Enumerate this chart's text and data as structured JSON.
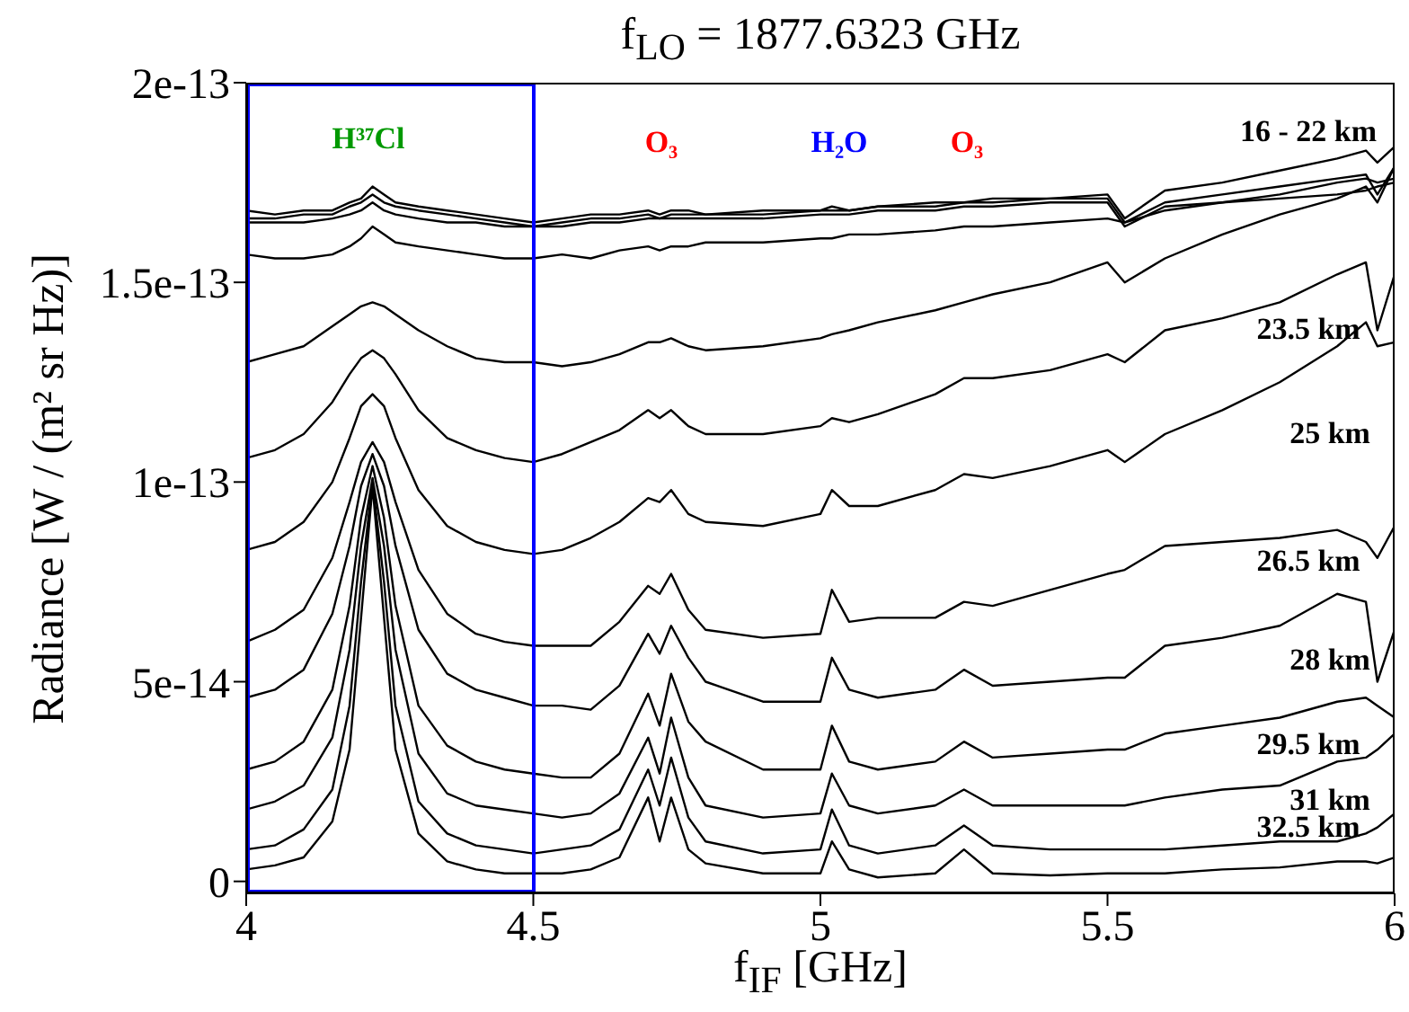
{
  "chart_data": {
    "type": "line",
    "title": "f$_{LO}$ = 1877.6323 GHz",
    "xlabel": "f$_{IF}$ [GHz]",
    "ylabel": "Radiance [W / (m² sr Hz)]",
    "xlim": [
      4,
      6
    ],
    "xticks": [
      4,
      4.5,
      5,
      5.5,
      6
    ],
    "ylim": [
      -3e-15,
      2e-13
    ],
    "yticks": [
      0,
      {
        "value": 5e-14,
        "label": "5e-14"
      },
      {
        "value": 1e-13,
        "label": "1e-13"
      },
      {
        "value": 1.5e-13,
        "label": "1.5e-13"
      },
      {
        "value": 2e-13,
        "label": "2e-13"
      }
    ],
    "annotations": [
      "H³⁷Cl",
      "O₃",
      "H₂O",
      "O₃",
      "16 - 22 km",
      "23.5 km",
      "25 km",
      "26.5 km",
      "28 km",
      "29.5 km",
      "31 km",
      "32.5 km"
    ],
    "x": [
      4.0,
      4.05,
      4.1,
      4.15,
      4.18,
      4.2,
      4.22,
      4.24,
      4.26,
      4.3,
      4.35,
      4.4,
      4.45,
      4.5,
      4.55,
      4.6,
      4.65,
      4.7,
      4.72,
      4.74,
      4.77,
      4.8,
      4.9,
      5.0,
      5.02,
      5.05,
      5.1,
      5.2,
      5.25,
      5.3,
      5.4,
      5.5,
      5.53,
      5.6,
      5.7,
      5.8,
      5.9,
      5.95,
      5.97,
      6.0
    ],
    "series": [
      {
        "color": "#000000",
        "values": [
          1.68e-13,
          1.67e-13,
          1.68e-13,
          1.68e-13,
          1.7e-13,
          1.71e-13,
          1.74e-13,
          1.72e-13,
          1.7e-13,
          1.69e-13,
          1.68e-13,
          1.67e-13,
          1.66e-13,
          1.65e-13,
          1.66e-13,
          1.67e-13,
          1.67e-13,
          1.68e-13,
          1.67e-13,
          1.68e-13,
          1.68e-13,
          1.67e-13,
          1.68e-13,
          1.68e-13,
          1.69e-13,
          1.68e-13,
          1.69e-13,
          1.7e-13,
          1.7e-13,
          1.71e-13,
          1.71e-13,
          1.72e-13,
          1.66e-13,
          1.73e-13,
          1.75e-13,
          1.78e-13,
          1.81e-13,
          1.83e-13,
          1.8e-13,
          1.84e-13
        ]
      },
      {
        "color": "#000000",
        "values": [
          1.66e-13,
          1.66e-13,
          1.67e-13,
          1.67e-13,
          1.69e-13,
          1.7e-13,
          1.72e-13,
          1.7e-13,
          1.69e-13,
          1.68e-13,
          1.67e-13,
          1.66e-13,
          1.65e-13,
          1.64e-13,
          1.65e-13,
          1.66e-13,
          1.66e-13,
          1.67e-13,
          1.66e-13,
          1.67e-13,
          1.67e-13,
          1.67e-13,
          1.67e-13,
          1.68e-13,
          1.68e-13,
          1.68e-13,
          1.69e-13,
          1.69e-13,
          1.7e-13,
          1.7e-13,
          1.71e-13,
          1.71e-13,
          1.65e-13,
          1.7e-13,
          1.72e-13,
          1.74e-13,
          1.76e-13,
          1.77e-13,
          1.72e-13,
          1.79e-13
        ]
      },
      {
        "color": "#000000",
        "values": [
          1.65e-13,
          1.65e-13,
          1.65e-13,
          1.66e-13,
          1.67e-13,
          1.68e-13,
          1.7e-13,
          1.68e-13,
          1.67e-13,
          1.66e-13,
          1.65e-13,
          1.65e-13,
          1.64e-13,
          1.64e-13,
          1.64e-13,
          1.65e-13,
          1.65e-13,
          1.66e-13,
          1.66e-13,
          1.66e-13,
          1.66e-13,
          1.66e-13,
          1.66e-13,
          1.67e-13,
          1.67e-13,
          1.67e-13,
          1.68e-13,
          1.68e-13,
          1.69e-13,
          1.69e-13,
          1.7e-13,
          1.7e-13,
          1.64e-13,
          1.69e-13,
          1.7e-13,
          1.71e-13,
          1.72e-13,
          1.73e-13,
          1.74e-13,
          1.75e-13
        ]
      },
      {
        "color": "#000000",
        "values": [
          1.57e-13,
          1.56e-13,
          1.56e-13,
          1.57e-13,
          1.59e-13,
          1.61e-13,
          1.64e-13,
          1.62e-13,
          1.6e-13,
          1.59e-13,
          1.58e-13,
          1.57e-13,
          1.56e-13,
          1.56e-13,
          1.57e-13,
          1.56e-13,
          1.58e-13,
          1.59e-13,
          1.58e-13,
          1.59e-13,
          1.59e-13,
          1.6e-13,
          1.6e-13,
          1.61e-13,
          1.61e-13,
          1.62e-13,
          1.62e-13,
          1.63e-13,
          1.64e-13,
          1.64e-13,
          1.65e-13,
          1.66e-13,
          1.65e-13,
          1.68e-13,
          1.7e-13,
          1.72e-13,
          1.75e-13,
          1.76e-13,
          1.75e-13,
          1.76e-13
        ]
      },
      {
        "color": "#000000",
        "values": [
          1.3e-13,
          1.32e-13,
          1.34e-13,
          1.39e-13,
          1.42e-13,
          1.44e-13,
          1.45e-13,
          1.44e-13,
          1.42e-13,
          1.38e-13,
          1.34e-13,
          1.31e-13,
          1.3e-13,
          1.3e-13,
          1.29e-13,
          1.3e-13,
          1.32e-13,
          1.35e-13,
          1.35e-13,
          1.36e-13,
          1.34e-13,
          1.33e-13,
          1.34e-13,
          1.36e-13,
          1.37e-13,
          1.38e-13,
          1.4e-13,
          1.43e-13,
          1.45e-13,
          1.47e-13,
          1.5e-13,
          1.55e-13,
          1.5e-13,
          1.56e-13,
          1.62e-13,
          1.67e-13,
          1.71e-13,
          1.74e-13,
          1.7e-13,
          1.79e-13
        ]
      },
      {
        "color": "#000000",
        "values": [
          1.06e-13,
          1.08e-13,
          1.12e-13,
          1.2e-13,
          1.27e-13,
          1.31e-13,
          1.33e-13,
          1.31e-13,
          1.27e-13,
          1.18e-13,
          1.11e-13,
          1.08e-13,
          1.06e-13,
          1.05e-13,
          1.07e-13,
          1.1e-13,
          1.13e-13,
          1.18e-13,
          1.16e-13,
          1.18e-13,
          1.14e-13,
          1.12e-13,
          1.12e-13,
          1.14e-13,
          1.16e-13,
          1.15e-13,
          1.17e-13,
          1.22e-13,
          1.26e-13,
          1.26e-13,
          1.28e-13,
          1.32e-13,
          1.3e-13,
          1.38e-13,
          1.41e-13,
          1.45e-13,
          1.52e-13,
          1.55e-13,
          1.38e-13,
          1.52e-13
        ]
      },
      {
        "color": "#000000",
        "values": [
          8.3e-14,
          8.5e-14,
          9e-14,
          1e-13,
          1.11e-13,
          1.19e-13,
          1.22e-13,
          1.19e-13,
          1.11e-13,
          9.8e-14,
          8.9e-14,
          8.5e-14,
          8.3e-14,
          8.2e-14,
          8.3e-14,
          8.6e-14,
          9e-14,
          9.6e-14,
          9.5e-14,
          9.8e-14,
          9.2e-14,
          9e-14,
          8.9e-14,
          9.2e-14,
          9.8e-14,
          9.4e-14,
          9.4e-14,
          9.8e-14,
          1.02e-13,
          1.01e-13,
          1.04e-13,
          1.08e-13,
          1.05e-13,
          1.12e-13,
          1.18e-13,
          1.25e-13,
          1.34e-13,
          1.4e-13,
          1.34e-13,
          1.35e-13
        ]
      },
      {
        "color": "#000000",
        "values": [
          6e-14,
          6.3e-14,
          6.8e-14,
          8.1e-14,
          9.5e-14,
          1.05e-13,
          1.1e-13,
          1.05e-13,
          9.5e-14,
          7.8e-14,
          6.7e-14,
          6.2e-14,
          6e-14,
          5.9e-14,
          5.9e-14,
          5.9e-14,
          6.5e-14,
          7.4e-14,
          7.2e-14,
          7.7e-14,
          6.8e-14,
          6.3e-14,
          6.1e-14,
          6.2e-14,
          7.3e-14,
          6.5e-14,
          6.6e-14,
          6.6e-14,
          7e-14,
          6.9e-14,
          7.3e-14,
          7.7e-14,
          7.8e-14,
          8.4e-14,
          8.5e-14,
          8.6e-14,
          8.8e-14,
          8.5e-14,
          8.1e-14,
          8.9e-14
        ]
      },
      {
        "color": "#000000",
        "values": [
          4.6e-14,
          4.8e-14,
          5.3e-14,
          6.7e-14,
          8.4e-14,
          9.9e-14,
          1.07e-13,
          9.9e-14,
          8.4e-14,
          6.3e-14,
          5.2e-14,
          4.8e-14,
          4.6e-14,
          4.4e-14,
          4.4e-14,
          4.3e-14,
          4.9e-14,
          6.2e-14,
          5.7e-14,
          6.4e-14,
          5.6e-14,
          5e-14,
          4.5e-14,
          4.5e-14,
          5.6e-14,
          4.8e-14,
          4.6e-14,
          4.8e-14,
          5.3e-14,
          4.9e-14,
          5e-14,
          5.1e-14,
          5.1e-14,
          5.9e-14,
          6.1e-14,
          6.4e-14,
          7.2e-14,
          7e-14,
          5e-14,
          6.3e-14
        ]
      },
      {
        "color": "#000000",
        "values": [
          2.8e-14,
          3e-14,
          3.5e-14,
          4.8e-14,
          6.9e-14,
          9.1e-14,
          1.04e-13,
          9.1e-14,
          6.9e-14,
          4.4e-14,
          3.4e-14,
          3e-14,
          2.8e-14,
          2.7e-14,
          2.6e-14,
          2.6e-14,
          3.2e-14,
          4.7e-14,
          3.9e-14,
          5.2e-14,
          4e-14,
          3.5e-14,
          2.8e-14,
          2.8e-14,
          3.9e-14,
          3e-14,
          2.8e-14,
          3e-14,
          3.5e-14,
          3.1e-14,
          3.2e-14,
          3.3e-14,
          3.3e-14,
          3.7e-14,
          3.9e-14,
          4.1e-14,
          4.5e-14,
          4.6e-14,
          4.4e-14,
          4.1e-14
        ]
      },
      {
        "color": "#000000",
        "values": [
          1.8e-14,
          2e-14,
          2.4e-14,
          3.6e-14,
          5.8e-14,
          8.4e-14,
          1.01e-13,
          8.4e-14,
          5.8e-14,
          3.2e-14,
          2.2e-14,
          1.9e-14,
          1.8e-14,
          1.7e-14,
          1.6e-14,
          1.7e-14,
          2.2e-14,
          3.6e-14,
          2.7e-14,
          4.1e-14,
          2.6e-14,
          1.9e-14,
          1.6e-14,
          1.7e-14,
          2.7e-14,
          1.9e-14,
          1.7e-14,
          1.9e-14,
          2.3e-14,
          1.9e-14,
          1.9e-14,
          1.9e-14,
          1.9e-14,
          2.1e-14,
          2.3e-14,
          2.4e-14,
          3e-14,
          3.1e-14,
          3.3e-14,
          3.7e-14
        ]
      },
      {
        "color": "#000000",
        "values": [
          8e-15,
          9e-15,
          1.3e-14,
          2.3e-14,
          4.4e-14,
          7.5e-14,
          1e-13,
          7.5e-14,
          4.4e-14,
          2e-14,
          1.2e-14,
          9e-15,
          8e-15,
          7e-15,
          8e-15,
          9e-15,
          1.3e-14,
          2.8e-14,
          1.9e-14,
          3.1e-14,
          1.6e-14,
          1e-14,
          7e-15,
          8e-15,
          1.8e-14,
          9e-15,
          7e-15,
          9e-15,
          1.4e-14,
          9e-15,
          8e-15,
          8e-15,
          8e-15,
          8e-15,
          9e-15,
          1e-14,
          1e-14,
          1.2e-14,
          1.35e-14,
          1.7e-14
        ]
      },
      {
        "color": "#000000",
        "values": [
          3e-15,
          4e-15,
          6e-15,
          1.5e-14,
          3.3e-14,
          6.6e-14,
          9.9e-14,
          6.6e-14,
          3.3e-14,
          1.2e-14,
          5e-15,
          3e-15,
          2e-15,
          2e-15,
          2e-15,
          3e-15,
          6e-15,
          2.1e-14,
          1e-14,
          2.1e-14,
          8e-15,
          4.5e-15,
          2e-15,
          2e-15,
          1e-14,
          3e-15,
          1e-15,
          2e-15,
          8e-15,
          2e-15,
          1.5e-15,
          2e-15,
          2e-15,
          2e-15,
          3e-15,
          3.5e-15,
          5e-15,
          5e-15,
          4.5e-15,
          6e-15
        ]
      }
    ]
  }
}
